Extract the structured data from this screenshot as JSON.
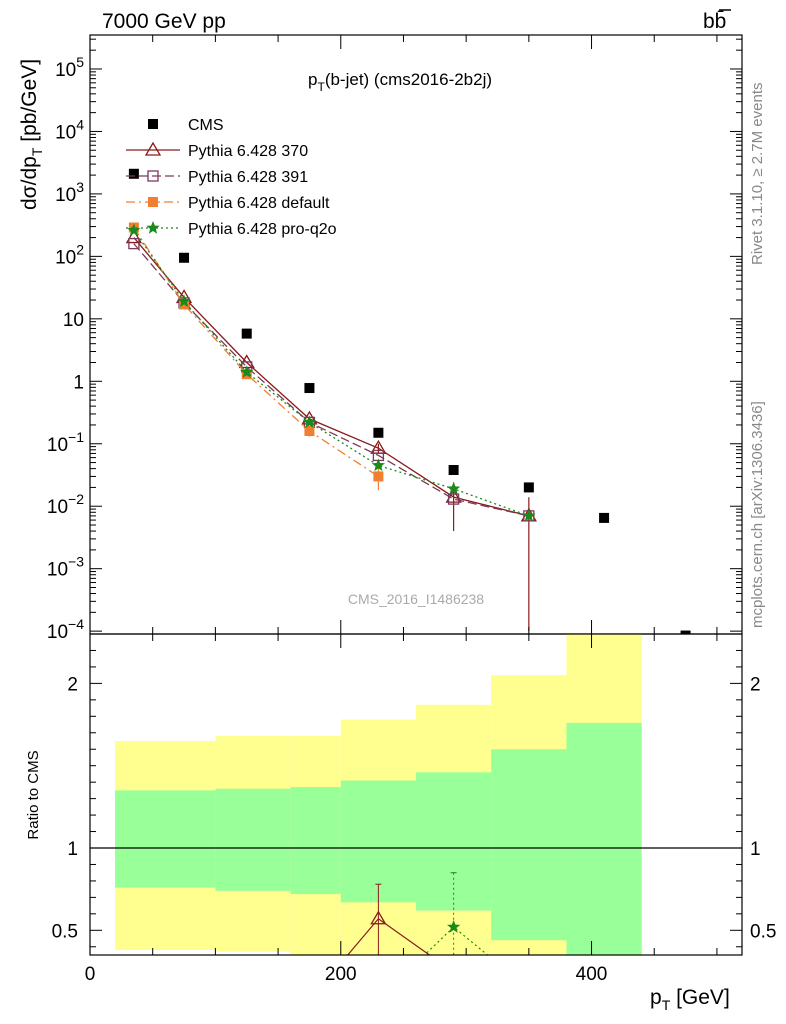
{
  "header": {
    "energy_label": "7000 GeV pp",
    "process_label": "bb̄",
    "observable_main": "p",
    "observable_sub": "T",
    "observable_rest": "(b-jet) (cms2016-2b2j)",
    "watermark": "CMS_2016_I1486238",
    "side_top": "Rivet 3.1.10, ≥ 2.7M events",
    "side_bottom": "mcplots.cern.ch [arXiv:1306.3436]"
  },
  "chart_data": [
    {
      "type": "scatter",
      "panel": "main",
      "ylabel": "dσ/dp_T [pb/GeV]",
      "yscale": "log",
      "xlim": [
        0,
        520
      ],
      "ylim": [
        9e-05,
        350000
      ],
      "y_tick_labels": [
        "10^-4",
        "10^-3",
        "10^-2",
        "10^-1",
        "1",
        "10",
        "10^2",
        "10^3",
        "10^4",
        "10^5"
      ],
      "legend_placement": "top-left",
      "series": [
        {
          "name": "CMS",
          "color": "#000000",
          "marker": "square",
          "x": [
            35,
            75,
            125,
            175,
            230,
            290,
            350,
            410,
            475
          ],
          "y": [
            2100,
            95,
            5.8,
            0.78,
            0.15,
            0.038,
            0.02,
            0.0065,
            8.5e-05
          ]
        },
        {
          "name": "Pythia 6.428 370",
          "color": "#8b1a1a",
          "marker": "triangle-open",
          "dash": "",
          "x": [
            35,
            75,
            125,
            175,
            230,
            290,
            350
          ],
          "y": [
            200,
            22,
            2.0,
            0.25,
            0.085,
            0.014,
            0.007
          ],
          "yerr": [
            0,
            0,
            0,
            0,
            0.015,
            0.01,
            0.0069
          ]
        },
        {
          "name": "Pythia 6.428 391",
          "color": "#7a3a5a",
          "marker": "square-open",
          "dash": "9,4",
          "x": [
            35,
            75,
            125,
            175,
            230,
            290,
            350
          ],
          "y": [
            160,
            18,
            1.7,
            0.22,
            0.065,
            0.013,
            0.007
          ]
        },
        {
          "name": "Pythia 6.428 default",
          "color": "#f08030",
          "marker": "square",
          "dash": "9,4,2,4",
          "x": [
            35,
            75,
            125,
            175,
            230
          ],
          "y": [
            290,
            17,
            1.3,
            0.16,
            0.03
          ],
          "yerr": [
            0,
            0,
            0,
            0.03,
            0.012
          ]
        },
        {
          "name": "Pythia 6.428 pro-q2o",
          "color": "#1a8a1a",
          "marker": "star",
          "dash": "2,3",
          "x": [
            35,
            75,
            125,
            175,
            230,
            290,
            350
          ],
          "y": [
            260,
            19,
            1.4,
            0.22,
            0.045,
            0.019,
            0.007
          ]
        }
      ]
    },
    {
      "type": "area",
      "panel": "ratio",
      "ylabel": "Ratio to CMS",
      "xlabel": "p_T [GeV]",
      "xlim": [
        0,
        520
      ],
      "ylim": [
        0.35,
        2.3
      ],
      "x_tick_labels": [
        "0",
        "200",
        "400"
      ],
      "y_tick_labels": [
        "0.5",
        "1",
        "2"
      ],
      "reference_line": 1,
      "bin_edges": [
        20,
        100,
        160,
        200,
        260,
        320,
        380,
        440
      ],
      "bands": [
        {
          "name": "yellow",
          "color": "#ffff90",
          "low": [
            0.38,
            0.37,
            0.33,
            0.3,
            0.28,
            0.2,
            0.12
          ],
          "high": [
            1.65,
            1.68,
            1.68,
            1.78,
            1.87,
            2.05,
            2.3
          ]
        },
        {
          "name": "green",
          "color": "#99ff99",
          "low": [
            0.76,
            0.74,
            0.72,
            0.67,
            0.62,
            0.44,
            0.28
          ],
          "high": [
            1.35,
            1.36,
            1.37,
            1.41,
            1.46,
            1.6,
            1.76
          ]
        }
      ],
      "ratio_series": [
        {
          "color": "#8b1a1a",
          "marker": "triangle-open",
          "dash": "",
          "x": [
            200,
            230,
            280
          ],
          "y": [
            0.3,
            0.57,
            0.3
          ],
          "markers_at": [
            230
          ],
          "yerr_up": [
            0,
            0.78,
            0
          ]
        },
        {
          "color": "#1a8a1a",
          "marker": "star",
          "dash": "2,3",
          "x": [
            260,
            290,
            325
          ],
          "y": [
            0.3,
            0.52,
            0.3
          ],
          "markers_at": [
            290
          ],
          "yerr_up": [
            0,
            0.85,
            0
          ]
        }
      ]
    }
  ]
}
